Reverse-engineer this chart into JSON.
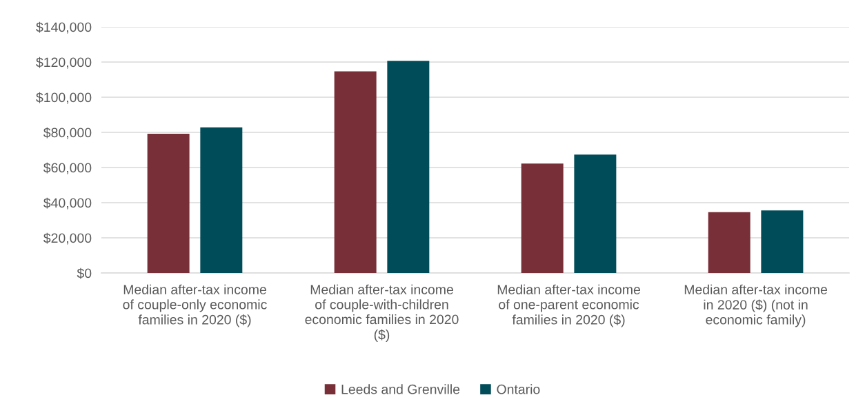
{
  "chart_data": {
    "type": "bar",
    "categories": [
      "Median after-tax income\nof couple-only economic\nfamilies in 2020 ($)",
      "Median after-tax income\nof couple-with-children\neconomic families in 2020\n($)",
      "Median after-tax income\nof one-parent economic\nfamilies in 2020 ($)",
      "Median after-tax income\nin 2020 ($) (not in\neconomic family)"
    ],
    "series": [
      {
        "name": "Leeds and Grenville",
        "color": "#782f37",
        "values": [
          79200,
          114700,
          62300,
          34600
        ]
      },
      {
        "name": "Ontario",
        "color": "#004c59",
        "values": [
          82800,
          120700,
          67400,
          35600
        ]
      }
    ],
    "ylim": [
      0,
      140000
    ],
    "yticks": [
      {
        "value": 0,
        "label": "$0"
      },
      {
        "value": 20000,
        "label": "$20,000"
      },
      {
        "value": 40000,
        "label": "$40,000"
      },
      {
        "value": 60000,
        "label": "$60,000"
      },
      {
        "value": 80000,
        "label": "$80,000"
      },
      {
        "value": 100000,
        "label": "$100,000"
      },
      {
        "value": 120000,
        "label": "$120,000"
      },
      {
        "value": 140000,
        "label": "$140,000"
      }
    ],
    "grid": "y",
    "legend": "bottom"
  }
}
